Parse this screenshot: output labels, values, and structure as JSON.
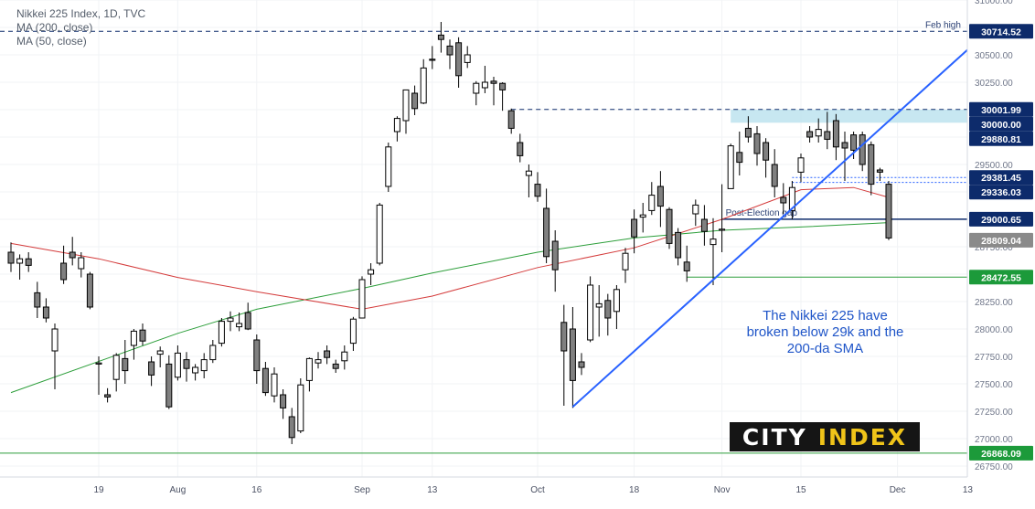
{
  "legend": {
    "line1": "Nikkei 225 Index, 1D, TVC",
    "line2": "MA (200, close)",
    "line3": "MA (50, close)"
  },
  "annotation": {
    "line1": "The Nikkei 225 have",
    "line2": "broken below 29k and the",
    "line3": "200-da SMA"
  },
  "brand": {
    "word1": "CITY",
    "word2": "INDEX"
  },
  "colors": {
    "ma200": "#2c9e3a",
    "ma50": "#d43b3b",
    "trendline": "#2962ff",
    "level_navy": "#0d2b6b",
    "zone_fill": "#bde3ef",
    "candle_fill": "#808080",
    "annotation_text": "#1f55c8",
    "brand_bg": "#151515",
    "brand_accent": "#f0c419"
  },
  "chart_data": {
    "type": "candlestick",
    "title": "Nikkei 225 Index, 1D, TVC",
    "ylim": [
      26650,
      31000
    ],
    "y_ticks": [
      26750,
      27000,
      27250,
      27500,
      27750,
      28000,
      28250,
      28500,
      28750,
      29000,
      29250,
      29500,
      29750,
      30000,
      30250,
      30500,
      30750,
      31000
    ],
    "x_ticks": [
      {
        "label": "19",
        "date": "2021-07-19"
      },
      {
        "label": "Aug",
        "date": "2021-08-02"
      },
      {
        "label": "16",
        "date": "2021-08-16"
      },
      {
        "label": "Sep",
        "date": "2021-09-01"
      },
      {
        "label": "13",
        "date": "2021-09-13"
      },
      {
        "label": "Oct",
        "date": "2021-10-01"
      },
      {
        "label": "18",
        "date": "2021-10-18"
      },
      {
        "label": "Nov",
        "date": "2021-11-01"
      },
      {
        "label": "15",
        "date": "2021-11-15"
      },
      {
        "label": "Dec",
        "date": "2021-12-01"
      },
      {
        "label": "13",
        "date": "2021-12-13"
      }
    ],
    "candles": [
      {
        "date": "2021-07-05",
        "o": 28700,
        "h": 28790,
        "l": 28520,
        "c": 28600
      },
      {
        "date": "2021-07-06",
        "o": 28600,
        "h": 28680,
        "l": 28450,
        "c": 28640
      },
      {
        "date": "2021-07-07",
        "o": 28640,
        "h": 28700,
        "l": 28520,
        "c": 28580
      },
      {
        "date": "2021-07-08",
        "o": 28330,
        "h": 28430,
        "l": 28100,
        "c": 28200
      },
      {
        "date": "2021-07-09",
        "o": 28200,
        "h": 28280,
        "l": 28060,
        "c": 28100
      },
      {
        "date": "2021-07-12",
        "o": 27800,
        "h": 28050,
        "l": 27450,
        "c": 28000
      },
      {
        "date": "2021-07-13",
        "o": 28600,
        "h": 28760,
        "l": 28410,
        "c": 28450
      },
      {
        "date": "2021-07-14",
        "o": 28700,
        "h": 28840,
        "l": 28580,
        "c": 28650
      },
      {
        "date": "2021-07-15",
        "o": 28550,
        "h": 28700,
        "l": 28470,
        "c": 28650
      },
      {
        "date": "2021-07-16",
        "o": 28500,
        "h": 28520,
        "l": 28180,
        "c": 28200
      },
      {
        "date": "2021-07-19",
        "o": 27680,
        "h": 27750,
        "l": 27400,
        "c": 27690
      },
      {
        "date": "2021-07-20",
        "o": 27400,
        "h": 27460,
        "l": 27330,
        "c": 27380
      },
      {
        "date": "2021-07-21",
        "o": 27540,
        "h": 27780,
        "l": 27430,
        "c": 27760
      },
      {
        "date": "2021-07-22",
        "o": 27730,
        "h": 27900,
        "l": 27500,
        "c": 27620
      },
      {
        "date": "2021-07-26",
        "o": 27850,
        "h": 28000,
        "l": 27720,
        "c": 27980
      },
      {
        "date": "2021-07-27",
        "o": 27990,
        "h": 28050,
        "l": 27850,
        "c": 27890
      },
      {
        "date": "2021-07-28",
        "o": 27700,
        "h": 27750,
        "l": 27480,
        "c": 27580
      },
      {
        "date": "2021-07-29",
        "o": 27770,
        "h": 27840,
        "l": 27650,
        "c": 27800
      },
      {
        "date": "2021-07-30",
        "o": 27680,
        "h": 27760,
        "l": 27270,
        "c": 27290
      },
      {
        "date": "2021-08-02",
        "o": 27560,
        "h": 27850,
        "l": 27530,
        "c": 27780
      },
      {
        "date": "2021-08-03",
        "o": 27720,
        "h": 27790,
        "l": 27520,
        "c": 27640
      },
      {
        "date": "2021-08-04",
        "o": 27600,
        "h": 27680,
        "l": 27530,
        "c": 27650
      },
      {
        "date": "2021-08-05",
        "o": 27620,
        "h": 27780,
        "l": 27550,
        "c": 27720
      },
      {
        "date": "2021-08-06",
        "o": 27720,
        "h": 27900,
        "l": 27690,
        "c": 27850
      },
      {
        "date": "2021-08-10",
        "o": 27870,
        "h": 28100,
        "l": 27840,
        "c": 28070
      },
      {
        "date": "2021-08-11",
        "o": 28070,
        "h": 28160,
        "l": 27980,
        "c": 28100
      },
      {
        "date": "2021-08-12",
        "o": 28020,
        "h": 28150,
        "l": 27980,
        "c": 28050
      },
      {
        "date": "2021-08-13",
        "o": 28150,
        "h": 28240,
        "l": 27990,
        "c": 28000
      },
      {
        "date": "2021-08-16",
        "o": 27900,
        "h": 27950,
        "l": 27500,
        "c": 27620
      },
      {
        "date": "2021-08-17",
        "o": 27640,
        "h": 27700,
        "l": 27390,
        "c": 27420
      },
      {
        "date": "2021-08-18",
        "o": 27390,
        "h": 27650,
        "l": 27330,
        "c": 27590
      },
      {
        "date": "2021-08-19",
        "o": 27400,
        "h": 27450,
        "l": 27180,
        "c": 27280
      },
      {
        "date": "2021-08-20",
        "o": 27200,
        "h": 27280,
        "l": 26950,
        "c": 27010
      },
      {
        "date": "2021-08-23",
        "o": 27070,
        "h": 27550,
        "l": 27050,
        "c": 27490
      },
      {
        "date": "2021-08-24",
        "o": 27530,
        "h": 27740,
        "l": 27430,
        "c": 27730
      },
      {
        "date": "2021-08-25",
        "o": 27690,
        "h": 27790,
        "l": 27640,
        "c": 27720
      },
      {
        "date": "2021-08-26",
        "o": 27800,
        "h": 27850,
        "l": 27680,
        "c": 27740
      },
      {
        "date": "2021-08-27",
        "o": 27680,
        "h": 27720,
        "l": 27600,
        "c": 27640
      },
      {
        "date": "2021-08-30",
        "o": 27710,
        "h": 27850,
        "l": 27630,
        "c": 27790
      },
      {
        "date": "2021-08-31",
        "o": 27870,
        "h": 28110,
        "l": 27800,
        "c": 28090
      },
      {
        "date": "2021-09-01",
        "o": 28100,
        "h": 28480,
        "l": 28100,
        "c": 28450
      },
      {
        "date": "2021-09-02",
        "o": 28500,
        "h": 28600,
        "l": 28400,
        "c": 28540
      },
      {
        "date": "2021-09-03",
        "o": 28600,
        "h": 29150,
        "l": 28580,
        "c": 29130
      },
      {
        "date": "2021-09-06",
        "o": 29300,
        "h": 29700,
        "l": 29250,
        "c": 29660
      },
      {
        "date": "2021-09-07",
        "o": 29800,
        "h": 29940,
        "l": 29710,
        "c": 29920
      },
      {
        "date": "2021-09-08",
        "o": 29900,
        "h": 30180,
        "l": 29780,
        "c": 30180
      },
      {
        "date": "2021-09-09",
        "o": 30150,
        "h": 30220,
        "l": 29950,
        "c": 30010
      },
      {
        "date": "2021-09-10",
        "o": 30060,
        "h": 30460,
        "l": 30050,
        "c": 30380
      },
      {
        "date": "2021-09-13",
        "o": 30460,
        "h": 30580,
        "l": 30370,
        "c": 30450
      },
      {
        "date": "2021-09-14",
        "o": 30680,
        "h": 30800,
        "l": 30520,
        "c": 30640
      },
      {
        "date": "2021-09-15",
        "o": 30580,
        "h": 30640,
        "l": 30370,
        "c": 30500
      },
      {
        "date": "2021-09-16",
        "o": 30610,
        "h": 30660,
        "l": 30200,
        "c": 30310
      },
      {
        "date": "2021-09-17",
        "o": 30430,
        "h": 30580,
        "l": 30380,
        "c": 30500
      },
      {
        "date": "2021-09-21",
        "o": 30150,
        "h": 30260,
        "l": 30040,
        "c": 30240
      },
      {
        "date": "2021-09-22",
        "o": 30200,
        "h": 30400,
        "l": 30150,
        "c": 30250
      },
      {
        "date": "2021-09-24",
        "o": 30260,
        "h": 30300,
        "l": 30040,
        "c": 30240
      },
      {
        "date": "2021-09-27",
        "o": 30240,
        "h": 30250,
        "l": 29990,
        "c": 30180
      },
      {
        "date": "2021-09-28",
        "o": 29990,
        "h": 30010,
        "l": 29780,
        "c": 29830
      },
      {
        "date": "2021-09-29",
        "o": 29700,
        "h": 29780,
        "l": 29520,
        "c": 29580
      },
      {
        "date": "2021-09-30",
        "o": 29400,
        "h": 29500,
        "l": 29200,
        "c": 29440
      },
      {
        "date": "2021-10-01",
        "o": 29320,
        "h": 29430,
        "l": 29160,
        "c": 29210
      },
      {
        "date": "2021-10-04",
        "o": 29100,
        "h": 29280,
        "l": 28600,
        "c": 28660
      },
      {
        "date": "2021-10-05",
        "o": 28800,
        "h": 28900,
        "l": 28340,
        "c": 28540
      },
      {
        "date": "2021-10-06",
        "o": 28060,
        "h": 28220,
        "l": 27300,
        "c": 27800
      },
      {
        "date": "2021-10-07",
        "o": 28000,
        "h": 28200,
        "l": 27280,
        "c": 27530
      },
      {
        "date": "2021-10-08",
        "o": 27700,
        "h": 27780,
        "l": 27580,
        "c": 27650
      },
      {
        "date": "2021-10-11",
        "o": 27900,
        "h": 28480,
        "l": 27880,
        "c": 28400
      },
      {
        "date": "2021-10-12",
        "o": 28200,
        "h": 28400,
        "l": 27930,
        "c": 28230
      },
      {
        "date": "2021-10-13",
        "o": 28260,
        "h": 28320,
        "l": 27940,
        "c": 28100
      },
      {
        "date": "2021-10-14",
        "o": 28160,
        "h": 28400,
        "l": 28000,
        "c": 28360
      },
      {
        "date": "2021-10-15",
        "o": 28540,
        "h": 28740,
        "l": 28420,
        "c": 28690
      },
      {
        "date": "2021-10-18",
        "o": 29000,
        "h": 29090,
        "l": 28690,
        "c": 28840
      },
      {
        "date": "2021-10-19",
        "o": 29020,
        "h": 29150,
        "l": 28880,
        "c": 29040
      },
      {
        "date": "2021-10-20",
        "o": 29080,
        "h": 29340,
        "l": 29040,
        "c": 29220
      },
      {
        "date": "2021-10-21",
        "o": 29300,
        "h": 29440,
        "l": 28930,
        "c": 29120
      },
      {
        "date": "2021-10-22",
        "o": 29090,
        "h": 29110,
        "l": 28730,
        "c": 28780
      },
      {
        "date": "2021-10-25",
        "o": 28880,
        "h": 28920,
        "l": 28580,
        "c": 28650
      },
      {
        "date": "2021-10-26",
        "o": 28610,
        "h": 28760,
        "l": 28430,
        "c": 28530
      },
      {
        "date": "2021-10-27",
        "o": 29050,
        "h": 29180,
        "l": 28940,
        "c": 29130
      },
      {
        "date": "2021-10-28",
        "o": 29000,
        "h": 29130,
        "l": 28760,
        "c": 28890
      },
      {
        "date": "2021-10-29",
        "o": 28770,
        "h": 29010,
        "l": 28400,
        "c": 28820
      },
      {
        "date": "2021-11-01",
        "o": 28900,
        "h": 29320,
        "l": 28700,
        "c": 28910
      },
      {
        "date": "2021-11-02",
        "o": 29280,
        "h": 29690,
        "l": 29280,
        "c": 29670
      },
      {
        "date": "2021-11-04",
        "o": 29610,
        "h": 29800,
        "l": 29400,
        "c": 29520
      },
      {
        "date": "2021-11-05",
        "o": 29830,
        "h": 29940,
        "l": 29700,
        "c": 29750
      },
      {
        "date": "2021-11-08",
        "o": 29780,
        "h": 29850,
        "l": 29490,
        "c": 29600
      },
      {
        "date": "2021-11-09",
        "o": 29700,
        "h": 29740,
        "l": 29380,
        "c": 29540
      },
      {
        "date": "2021-11-10",
        "o": 29500,
        "h": 29640,
        "l": 29200,
        "c": 29300
      },
      {
        "date": "2021-11-11",
        "o": 29200,
        "h": 29330,
        "l": 29050,
        "c": 29150
      },
      {
        "date": "2021-11-12",
        "o": 29080,
        "h": 29350,
        "l": 29000,
        "c": 29290
      },
      {
        "date": "2021-11-15",
        "o": 29430,
        "h": 29600,
        "l": 29340,
        "c": 29560
      },
      {
        "date": "2021-11-16",
        "o": 29800,
        "h": 29850,
        "l": 29700,
        "c": 29750
      },
      {
        "date": "2021-11-17",
        "o": 29760,
        "h": 29920,
        "l": 29700,
        "c": 29820
      },
      {
        "date": "2021-11-18",
        "o": 29800,
        "h": 29980,
        "l": 29640,
        "c": 29730
      },
      {
        "date": "2021-11-19",
        "o": 29900,
        "h": 29960,
        "l": 29540,
        "c": 29660
      },
      {
        "date": "2021-11-22",
        "o": 29700,
        "h": 29800,
        "l": 29350,
        "c": 29650
      },
      {
        "date": "2021-11-24",
        "o": 29770,
        "h": 29800,
        "l": 29550,
        "c": 29630
      },
      {
        "date": "2021-11-25",
        "o": 29770,
        "h": 29800,
        "l": 29440,
        "c": 29500
      },
      {
        "date": "2021-11-26",
        "o": 29680,
        "h": 29710,
        "l": 29220,
        "c": 29320
      },
      {
        "date": "2021-11-29",
        "o": 29450,
        "h": 29470,
        "l": 29350,
        "c": 29430
      },
      {
        "date": "2021-11-30",
        "o": 29320,
        "h": 29350,
        "l": 28810,
        "c": 28830
      }
    ],
    "series": [
      {
        "name": "MA (200, close)",
        "values": [
          {
            "date": "2021-07-05",
            "y": 27420
          },
          {
            "date": "2021-08-02",
            "y": 27960
          },
          {
            "date": "2021-08-16",
            "y": 28180
          },
          {
            "date": "2021-09-01",
            "y": 28370
          },
          {
            "date": "2021-09-13",
            "y": 28510
          },
          {
            "date": "2021-10-01",
            "y": 28700
          },
          {
            "date": "2021-10-18",
            "y": 28830
          },
          {
            "date": "2021-11-01",
            "y": 28900
          },
          {
            "date": "2021-11-15",
            "y": 28930
          },
          {
            "date": "2021-11-30",
            "y": 28970
          }
        ]
      },
      {
        "name": "MA (50, close)",
        "values": [
          {
            "date": "2021-07-05",
            "y": 28780
          },
          {
            "date": "2021-07-19",
            "y": 28640
          },
          {
            "date": "2021-08-02",
            "y": 28470
          },
          {
            "date": "2021-08-16",
            "y": 28340
          },
          {
            "date": "2021-09-01",
            "y": 28180
          },
          {
            "date": "2021-09-13",
            "y": 28300
          },
          {
            "date": "2021-10-01",
            "y": 28560
          },
          {
            "date": "2021-10-18",
            "y": 28740
          },
          {
            "date": "2021-11-01",
            "y": 29000
          },
          {
            "date": "2021-11-15",
            "y": 29270
          },
          {
            "date": "2021-11-24",
            "y": 29290
          },
          {
            "date": "2021-11-30",
            "y": 29200
          }
        ]
      }
    ],
    "horizontal_lines": [
      {
        "value": 30714.52,
        "style": "dashed",
        "text": "Feb high"
      },
      {
        "value": 30001.99,
        "style": "dashed",
        "from": "2021-09-28"
      },
      {
        "value": 29381.45,
        "style": "dotted",
        "from": "2021-11-12"
      },
      {
        "value": 29336.03,
        "style": "dotted",
        "from": "2021-11-12"
      },
      {
        "value": 29000.65,
        "style": "solid",
        "from": "2021-11-01",
        "text": "Post-Election gap"
      },
      {
        "value": 28472.55,
        "style": "solid-green",
        "from": "2021-10-26"
      },
      {
        "value": 26868.09,
        "style": "solid-green"
      }
    ],
    "zone": {
      "from_value": 29880.81,
      "to_value": 30000.0,
      "from": "2021-11-02"
    },
    "trendline": {
      "start": {
        "date": "2021-10-07",
        "y": 27290
      },
      "end": {
        "date": "2021-12-14",
        "y": 30620
      }
    },
    "price_labels": [
      {
        "text": "30714.52",
        "value": 30714.52,
        "kind": "navy"
      },
      {
        "text": "30001.99",
        "value": 30001.99,
        "kind": "navy"
      },
      {
        "text": "30000.00",
        "value": 30000.0,
        "kind": "navy"
      },
      {
        "text": "29880.81",
        "value": 29880.81,
        "kind": "navy"
      },
      {
        "text": "29381.45",
        "value": 29381.45,
        "kind": "navy"
      },
      {
        "text": "29336.03",
        "value": 29336.03,
        "kind": "navy"
      },
      {
        "text": "29000.65",
        "value": 29000.65,
        "kind": "navy"
      },
      {
        "text": "28809.04",
        "value": 28809.04,
        "kind": "gray"
      },
      {
        "text": "28472.55",
        "value": 28472.55,
        "kind": "green"
      },
      {
        "text": "26868.09",
        "value": 26868.09,
        "kind": "green"
      }
    ]
  }
}
